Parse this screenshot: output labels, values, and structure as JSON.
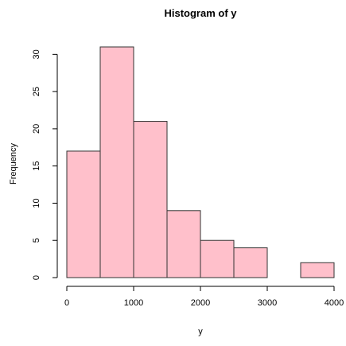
{
  "chart_data": {
    "type": "bar",
    "title": "Histogram of y",
    "xlabel": "y",
    "ylabel": "Frequency",
    "bins": [
      {
        "start": 0,
        "end": 500,
        "count": 17
      },
      {
        "start": 500,
        "end": 1000,
        "count": 31
      },
      {
        "start": 1000,
        "end": 1500,
        "count": 21
      },
      {
        "start": 1500,
        "end": 2000,
        "count": 9
      },
      {
        "start": 2000,
        "end": 2500,
        "count": 5
      },
      {
        "start": 2500,
        "end": 3000,
        "count": 4
      },
      {
        "start": 3000,
        "end": 3500,
        "count": 0
      },
      {
        "start": 3500,
        "end": 4000,
        "count": 2
      }
    ],
    "xlim": [
      0,
      4000
    ],
    "ylim": [
      0,
      31
    ],
    "x_ticks": [
      {
        "value": 0,
        "label": "0"
      },
      {
        "value": 1000,
        "label": "1000"
      },
      {
        "value": 2000,
        "label": "2000"
      },
      {
        "value": 3000,
        "label": "3000"
      },
      {
        "value": 4000,
        "label": "4000"
      }
    ],
    "y_ticks": [
      {
        "value": 0,
        "label": "0"
      },
      {
        "value": 5,
        "label": "5"
      },
      {
        "value": 10,
        "label": "10"
      },
      {
        "value": 15,
        "label": "15"
      },
      {
        "value": 20,
        "label": "20"
      },
      {
        "value": 25,
        "label": "25"
      },
      {
        "value": 30,
        "label": "30"
      }
    ],
    "bar_color": "#ffc0cb",
    "bar_border_color": "#333333",
    "grid": false,
    "legend": "none"
  }
}
